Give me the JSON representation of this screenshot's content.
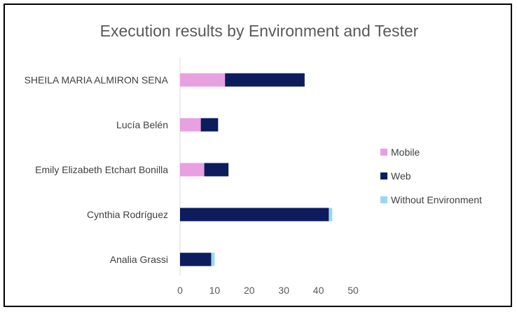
{
  "chart_data": {
    "type": "bar",
    "orientation": "horizontal",
    "stacked": true,
    "title": "Execution results by Environment and Tester",
    "categories": [
      "SHEILA MARIA ALMIRON SENA",
      "Lucía Belén",
      "Emily Elizabeth Etchart Bonilla",
      "Cynthia Rodríguez",
      "Analia Grassi"
    ],
    "series": [
      {
        "name": "Mobile",
        "color": "#e8a0e0",
        "values": [
          13,
          6,
          7,
          0,
          0
        ]
      },
      {
        "name": "Web",
        "color": "#0c1c5c",
        "values": [
          23,
          5,
          7,
          43,
          9
        ]
      },
      {
        "name": "Without Environment",
        "color": "#9ad8f2",
        "values": [
          0,
          0,
          0,
          1,
          1
        ]
      }
    ],
    "xlim": [
      0,
      50
    ],
    "xticks": [
      0,
      10,
      20,
      30,
      40,
      50
    ],
    "grid": false,
    "legend_position": "right",
    "axis_color": "#d9d9d9"
  }
}
